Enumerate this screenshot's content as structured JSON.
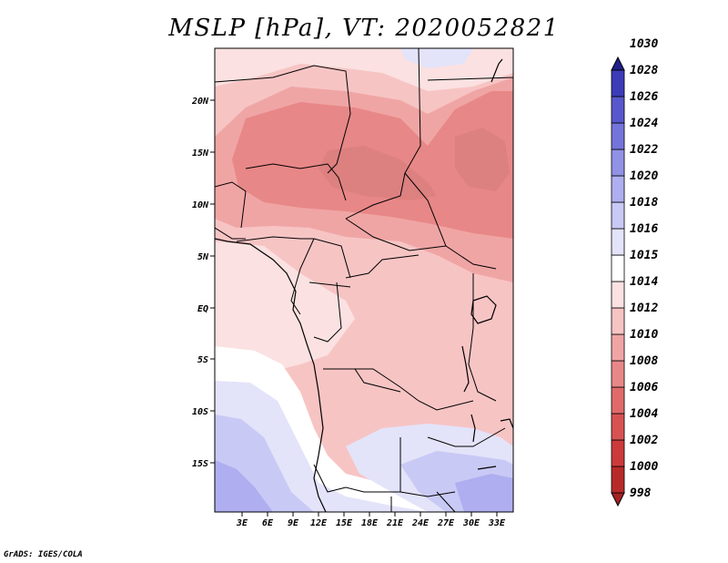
{
  "title": "MSLP [hPa], VT: 2020052821",
  "credit": "GrADS: IGES/COLA",
  "map": {
    "lon_labels": [
      "3E",
      "6E",
      "9E",
      "12E",
      "15E",
      "18E",
      "21E",
      "24E",
      "27E",
      "30E",
      "33E"
    ],
    "lat_labels": [
      "20N",
      "15N",
      "10N",
      "5N",
      "EQ",
      "5S",
      "10S",
      "15S"
    ]
  },
  "colorbar": {
    "levels": [
      {
        "label": "998",
        "color": "#a52222"
      },
      {
        "label": "1000",
        "color": "#b82a2a"
      },
      {
        "label": "1002",
        "color": "#cc3b3b"
      },
      {
        "label": "1004",
        "color": "#d85252"
      },
      {
        "label": "1006",
        "color": "#e06a6a"
      },
      {
        "label": "1008",
        "color": "#e88787"
      },
      {
        "label": "1010",
        "color": "#f0a5a5"
      },
      {
        "label": "1012",
        "color": "#f7c4c4"
      },
      {
        "label": "1014",
        "color": "#fbe1e1"
      },
      {
        "label": "1015",
        "color": "#ffffff"
      },
      {
        "label": "1016",
        "color": "#e3e3fa"
      },
      {
        "label": "1018",
        "color": "#c9c9f5"
      },
      {
        "label": "1020",
        "color": "#aeaef0"
      },
      {
        "label": "1022",
        "color": "#9191e6"
      },
      {
        "label": "1024",
        "color": "#7474da"
      },
      {
        "label": "1026",
        "color": "#5858cc"
      },
      {
        "label": "1028",
        "color": "#3c3cb8"
      },
      {
        "label": "1030",
        "color": "#2a2aa0"
      }
    ],
    "top_arrow_color": "#1f1f8a"
  }
}
